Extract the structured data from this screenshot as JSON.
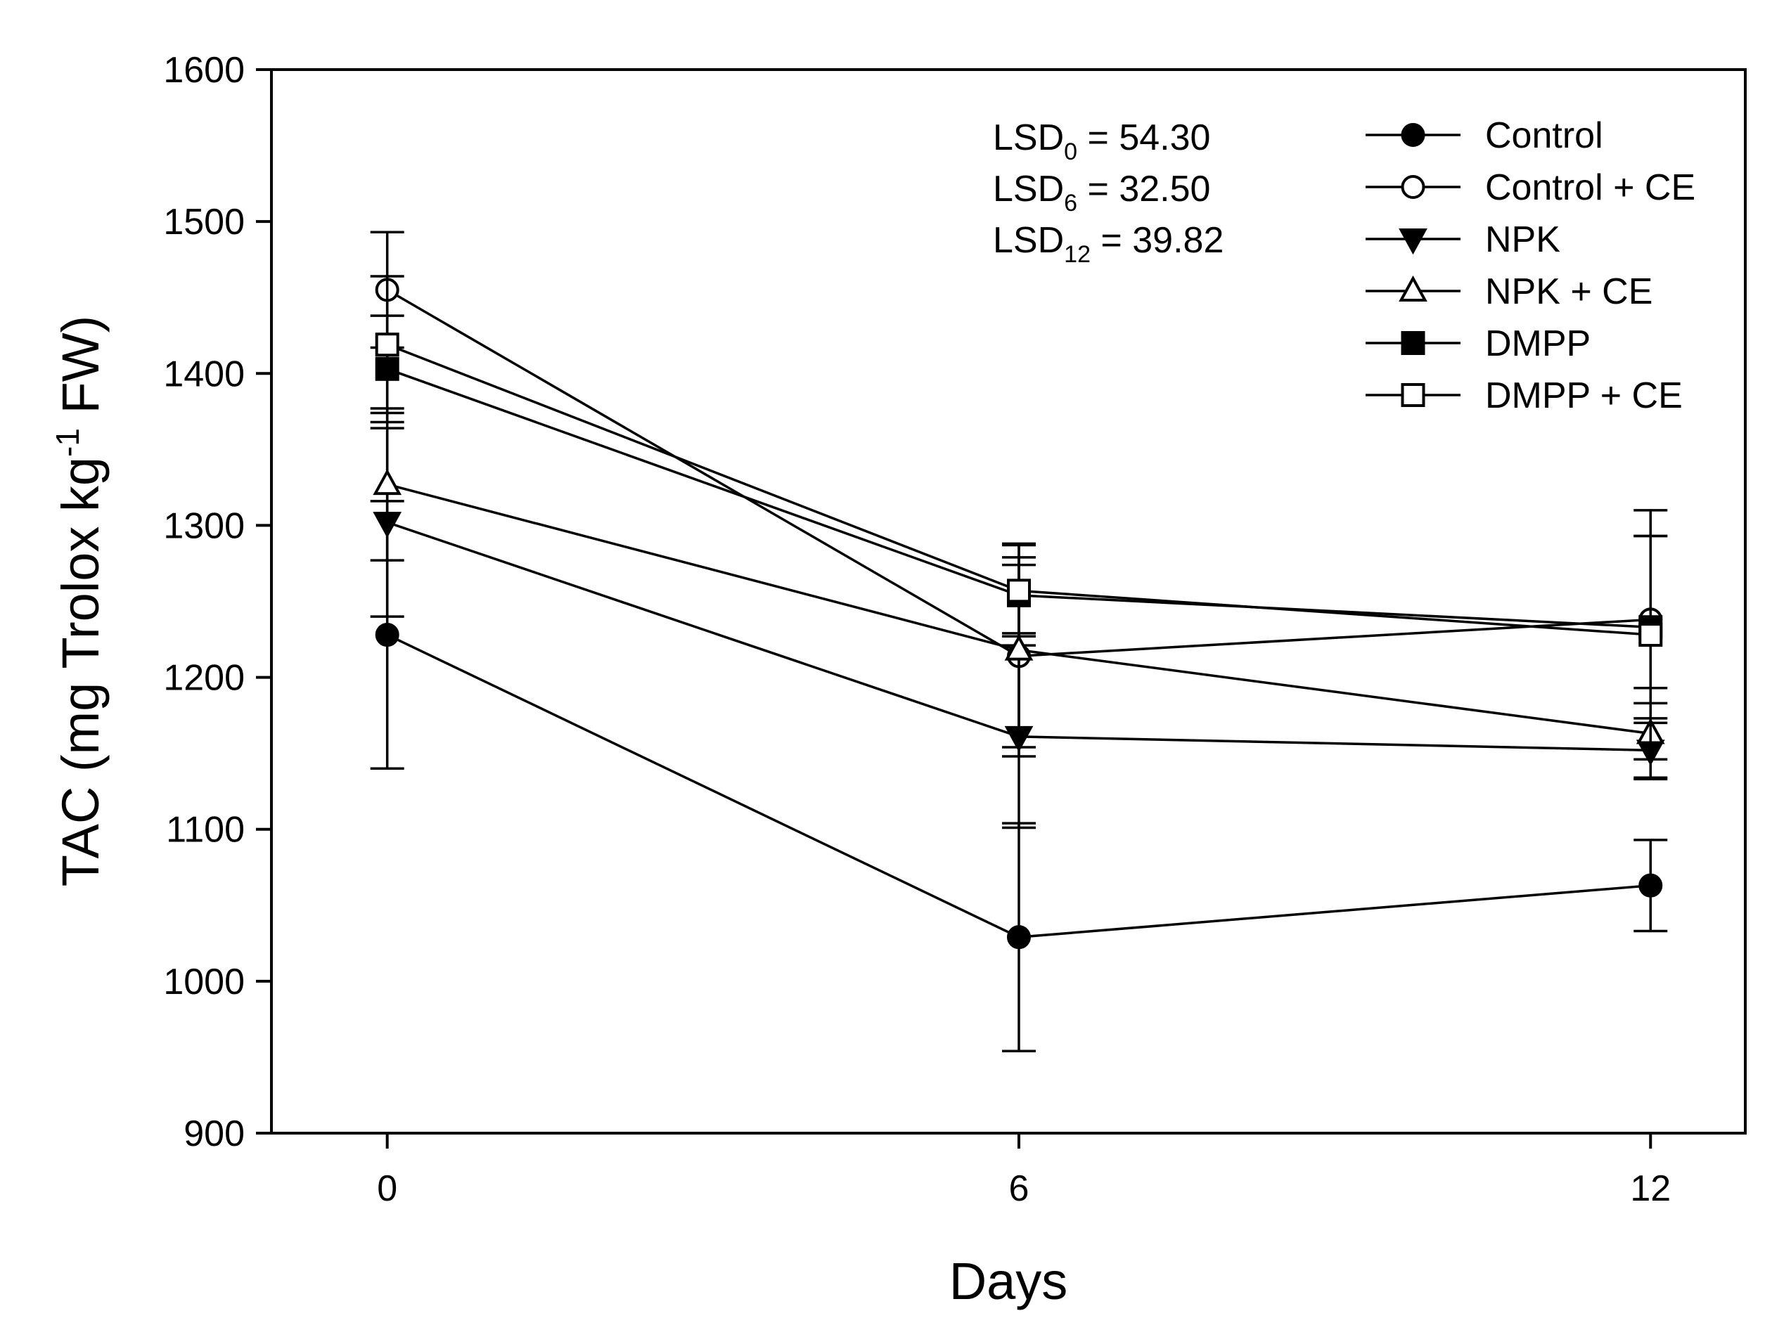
{
  "chart_data": {
    "type": "line",
    "xlabel": "Days",
    "ylabel": {
      "main": "TAC (mg Trolox kg",
      "sup": "-1",
      "tail": " FW)"
    },
    "x": [
      0,
      6,
      12
    ],
    "xticks": [
      "0",
      "6",
      "12"
    ],
    "xlim": [
      -1.1,
      12.9
    ],
    "ylim": [
      900,
      1600
    ],
    "yticks": [
      900,
      1000,
      1100,
      1200,
      1300,
      1400,
      1500,
      1600
    ],
    "grid": false,
    "legend_position": "top-right",
    "annotations": [
      {
        "prefix": "LSD",
        "sub": "0",
        "suffix": " = 54.30"
      },
      {
        "prefix": "LSD",
        "sub": "6",
        "suffix": " = 32.50"
      },
      {
        "prefix": "LSD",
        "sub": "12",
        "suffix": " = 39.82"
      }
    ],
    "series": [
      {
        "name": "Control",
        "marker": "circle",
        "filled": true,
        "values": [
          1228,
          1029,
          1063
        ],
        "errors": [
          88,
          75,
          30
        ]
      },
      {
        "name": "Control + CE",
        "marker": "circle",
        "filled": false,
        "values": [
          1455,
          1214,
          1238
        ],
        "errors": [
          38,
          60,
          55
        ]
      },
      {
        "name": "NPK",
        "marker": "triangle-down",
        "filled": true,
        "values": [
          1302,
          1161,
          1152
        ],
        "errors": [
          62,
          60,
          18
        ]
      },
      {
        "name": "NPK + CE",
        "marker": "triangle-up",
        "filled": false,
        "values": [
          1327,
          1218,
          1163
        ],
        "errors": [
          50,
          70,
          30
        ]
      },
      {
        "name": "DMPP",
        "marker": "square",
        "filled": true,
        "values": [
          1403,
          1254,
          1233
        ],
        "errors": [
          35,
          25,
          60
        ]
      },
      {
        "name": "DMPP + CE",
        "marker": "square",
        "filled": false,
        "values": [
          1419,
          1257,
          1228
        ],
        "errors": [
          45,
          30,
          82
        ]
      }
    ]
  }
}
